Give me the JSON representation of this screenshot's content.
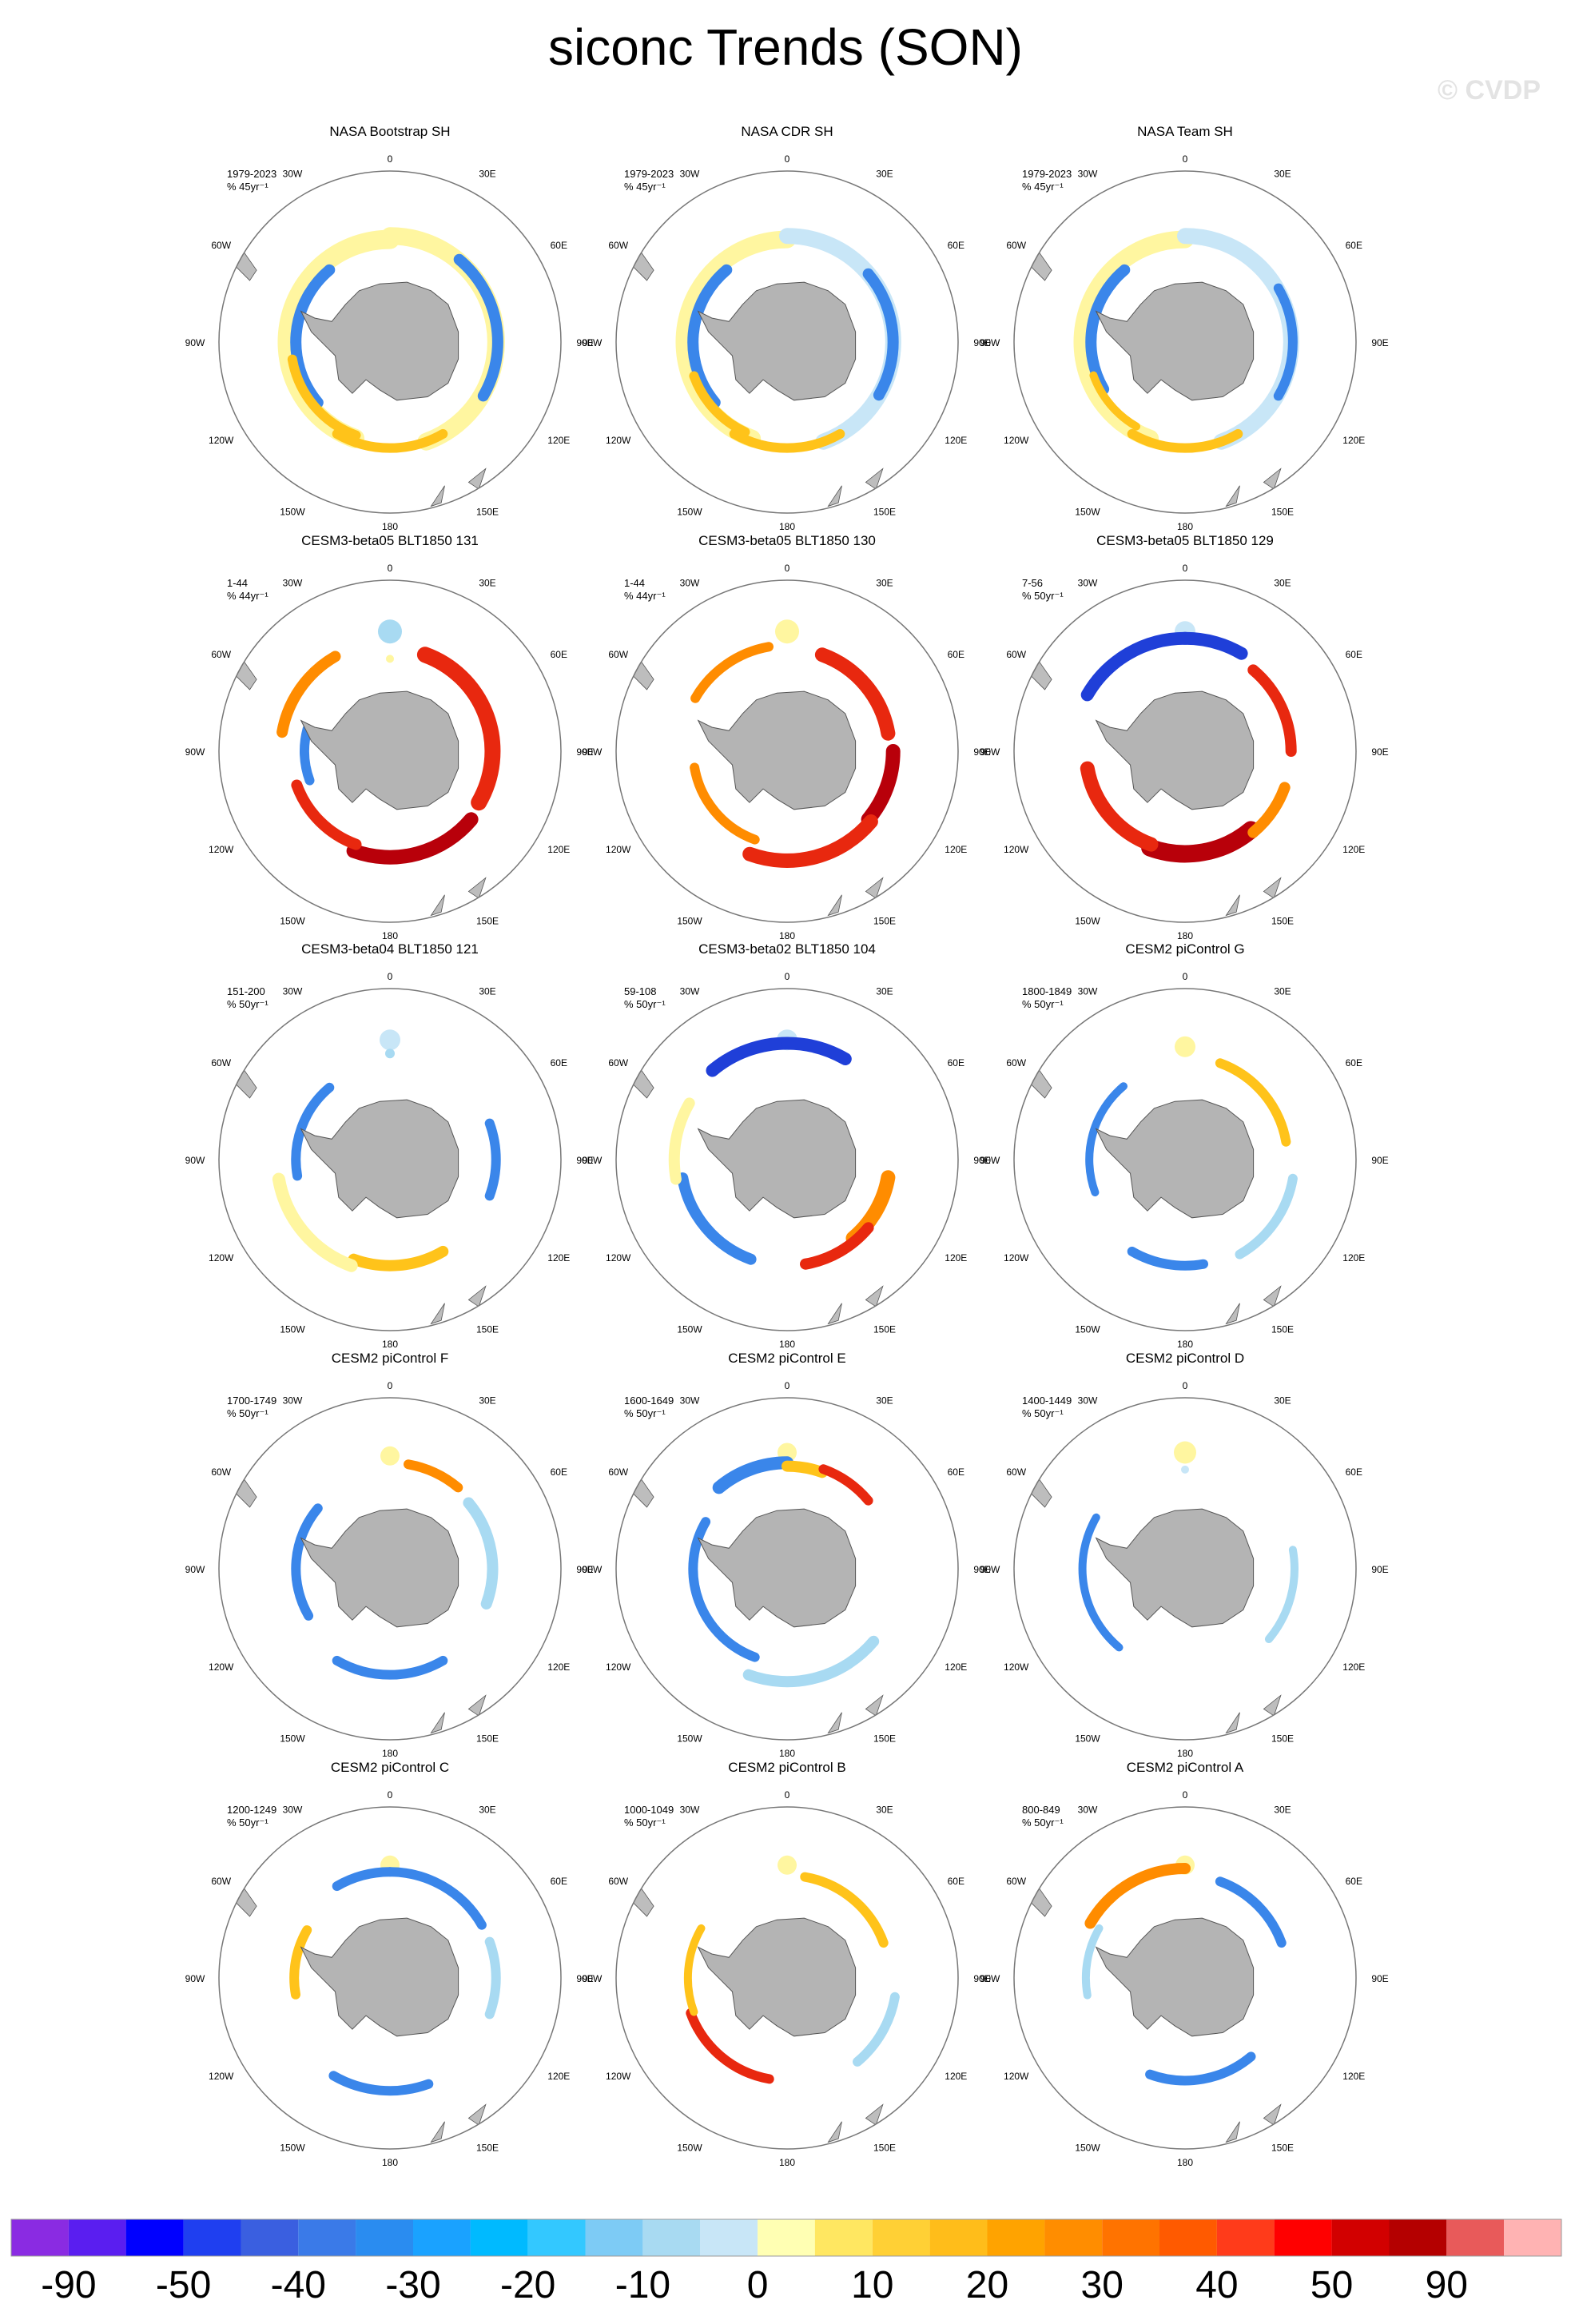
{
  "title": "siconc Trends (SON)",
  "watermark": "© CVDP",
  "chart_data": {
    "type": "heatmap",
    "projection": "south polar stereographic",
    "variable": "siconc",
    "season": "SON",
    "longitude_labels": [
      "0",
      "30E",
      "60E",
      "90E",
      "120E",
      "150E",
      "180",
      "150W",
      "120W",
      "90W",
      "60W",
      "30W"
    ],
    "panels": [
      {
        "title": "NASA Bootstrap SH",
        "period": "1979-2023",
        "units": "% 45yr⁻¹",
        "pattern": "obs_bootstrap"
      },
      {
        "title": "NASA CDR SH",
        "period": "1979-2023",
        "units": "% 45yr⁻¹",
        "pattern": "obs_cdr"
      },
      {
        "title": "NASA Team SH",
        "period": "1979-2023",
        "units": "% 45yr⁻¹",
        "pattern": "obs_team"
      },
      {
        "title": "CESM3-beta05 BLT1850 131",
        "period": "1-44",
        "units": "% 44yr⁻¹",
        "pattern": "b131"
      },
      {
        "title": "CESM3-beta05 BLT1850 130",
        "period": "1-44",
        "units": "% 44yr⁻¹",
        "pattern": "b130"
      },
      {
        "title": "CESM3-beta05 BLT1850 129",
        "period": "7-56",
        "units": "% 50yr⁻¹",
        "pattern": "b129"
      },
      {
        "title": "CESM3-beta04 BLT1850 121",
        "period": "151-200",
        "units": "% 50yr⁻¹",
        "pattern": "b121"
      },
      {
        "title": "CESM3-beta02 BLT1850 104",
        "period": "59-108",
        "units": "% 50yr⁻¹",
        "pattern": "b104"
      },
      {
        "title": "CESM2 piControl G",
        "period": "1800-1849",
        "units": "% 50yr⁻¹",
        "pattern": "g"
      },
      {
        "title": "CESM2 piControl F",
        "period": "1700-1749",
        "units": "% 50yr⁻¹",
        "pattern": "f"
      },
      {
        "title": "CESM2 piControl E",
        "period": "1600-1649",
        "units": "% 50yr⁻¹",
        "pattern": "e"
      },
      {
        "title": "CESM2 piControl D",
        "period": "1400-1449",
        "units": "% 50yr⁻¹",
        "pattern": "d"
      },
      {
        "title": "CESM2 piControl C",
        "period": "1200-1249",
        "units": "% 50yr⁻¹",
        "pattern": "c"
      },
      {
        "title": "CESM2 piControl B",
        "period": "1000-1049",
        "units": "% 50yr⁻¹",
        "pattern": "b"
      },
      {
        "title": "CESM2 piControl A",
        "period": "800-849",
        "units": "% 50yr⁻¹",
        "pattern": "a"
      }
    ],
    "colorbar": {
      "colors": [
        "#8a2be2",
        "#5a1ef0",
        "#0000ff",
        "#1f3ff0",
        "#3a5fe0",
        "#3a7ae8",
        "#2a8cf0",
        "#1aa2ff",
        "#00baff",
        "#33c8ff",
        "#7dcbf5",
        "#a8daf2",
        "#c8e6f7",
        "#ffffb3",
        "#ffe761",
        "#ffd035",
        "#ffbd1a",
        "#ffa300",
        "#ff8d00",
        "#ff7300",
        "#ff5a00",
        "#ff3b1a",
        "#ff0000",
        "#d20000",
        "#b40000",
        "#e85a5a",
        "#ffb3b3"
      ],
      "labels": [
        "-90",
        "-50",
        "-40",
        "-30",
        "-20",
        "-10",
        "0",
        "10",
        "20",
        "30",
        "40",
        "50",
        "90"
      ]
    }
  }
}
